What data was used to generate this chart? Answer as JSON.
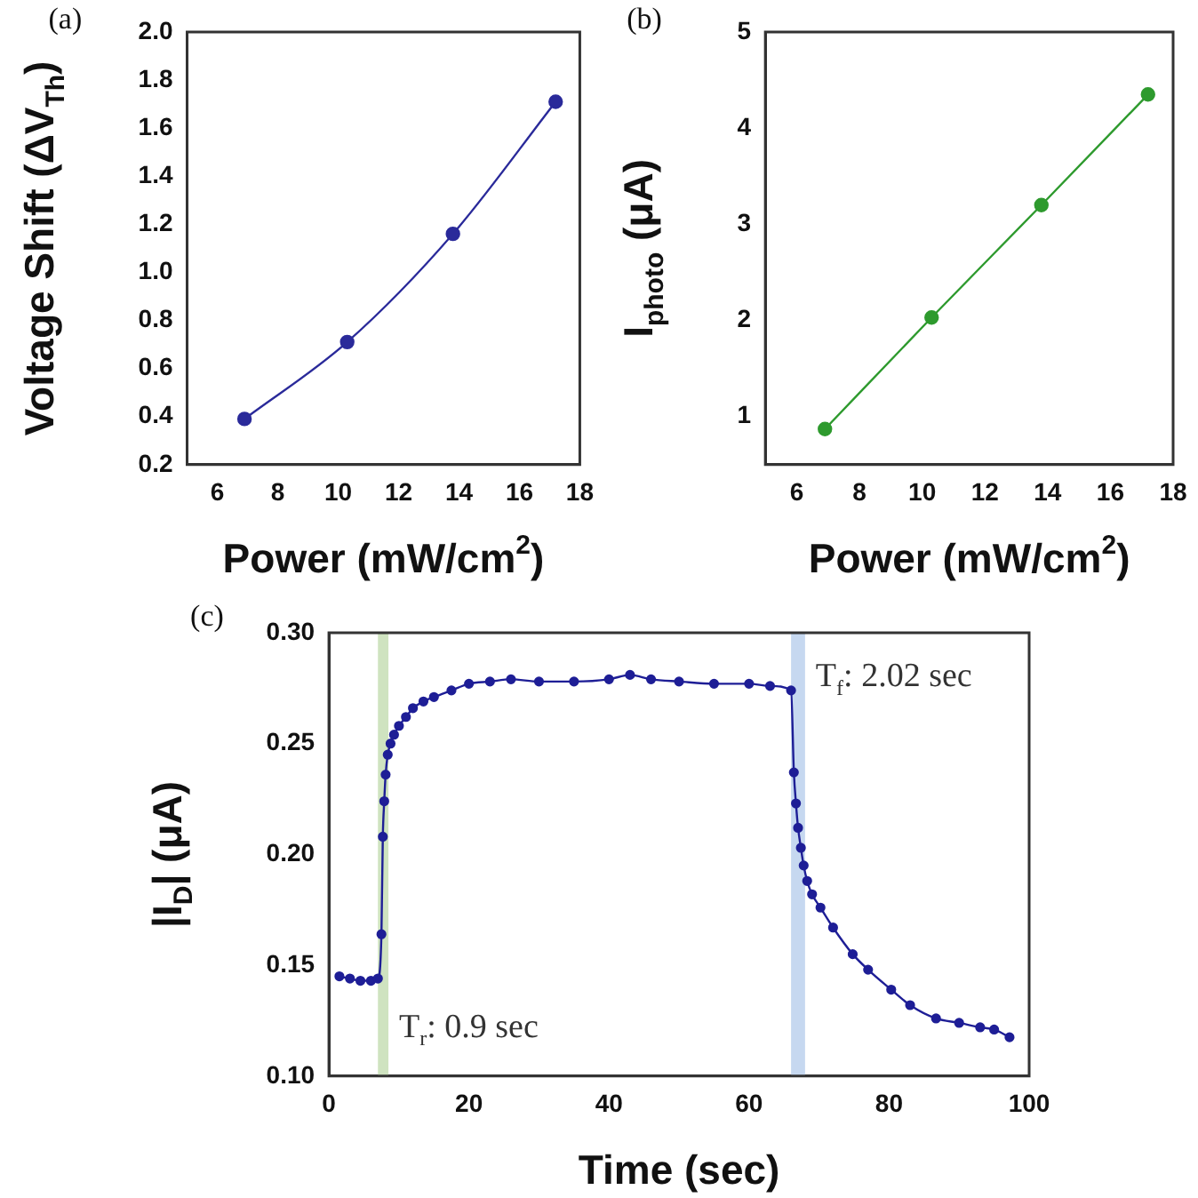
{
  "chart_data": [
    {
      "type": "line",
      "title": "(a)",
      "xlabel": "Power (mW/cm$^{2}$)",
      "ylabel": "Voltage Shift (ΔV$_{Th}$)",
      "marker": "circle",
      "grid": false,
      "legend": false,
      "x": [
        6.9,
        10.3,
        13.8,
        17.2
      ],
      "series": [
        {
          "color": "#2a2a9a",
          "values": [
            0.39,
            0.71,
            1.16,
            1.71
          ]
        }
      ],
      "xlim": [
        5,
        18
      ],
      "xticks": [
        6,
        8,
        10,
        12,
        14,
        16,
        18
      ],
      "ylim": [
        0.2,
        2.0
      ],
      "yticks": [
        0.2,
        0.4,
        0.6,
        0.8,
        {
          "value": 1,
          "label": "1.0"
        },
        1.2,
        1.4,
        1.6,
        1.8,
        {
          "value": 2,
          "label": "2.0"
        }
      ]
    },
    {
      "type": "line",
      "title": "(b)",
      "xlabel": "Power (mW/cm$^{2}$)",
      "ylabel": "I$_{photo}$ (μA)",
      "marker": "circle",
      "grid": false,
      "legend": false,
      "x": [
        6.9,
        10.3,
        13.8,
        17.2
      ],
      "series": [
        {
          "color": "#2e9a2e",
          "values": [
            0.87,
            2.03,
            3.2,
            4.35
          ]
        }
      ],
      "xlim": [
        5,
        18
      ],
      "xticks": [
        6,
        8,
        10,
        12,
        14,
        16,
        18
      ],
      "ylim": [
        0.5,
        5
      ],
      "yticks": [
        1,
        2,
        3,
        4,
        5
      ]
    },
    {
      "type": "line",
      "title": "(c)",
      "xlabel": "Time (sec)",
      "ylabel": "|I$_{D}$| (μA)",
      "marker": "circle",
      "grid": false,
      "legend": false,
      "x": [
        1.5,
        3,
        4.5,
        6,
        7,
        7.5,
        7.7,
        7.9,
        8.1,
        8.4,
        8.8,
        9.3,
        10,
        11,
        12,
        13.5,
        15,
        17.5,
        20,
        23,
        26,
        30,
        35,
        40,
        43,
        46,
        50,
        55,
        60,
        63,
        66,
        66.4,
        66.7,
        67,
        67.4,
        67.8,
        68.3,
        69,
        70.2,
        72,
        74.8,
        77,
        80.3,
        83,
        86.7,
        90,
        93,
        95,
        97.2
      ],
      "series": [
        {
          "color": "#1e1e96",
          "values": [
            0.145,
            0.144,
            0.143,
            0.143,
            0.144,
            0.164,
            0.208,
            0.224,
            0.236,
            0.245,
            0.25,
            0.254,
            0.258,
            0.262,
            0.266,
            0.269,
            0.271,
            0.274,
            0.277,
            0.278,
            0.279,
            0.278,
            0.278,
            0.279,
            0.281,
            0.279,
            0.278,
            0.277,
            0.277,
            0.276,
            0.274,
            0.237,
            0.223,
            0.212,
            0.203,
            0.195,
            0.188,
            0.182,
            0.176,
            0.167,
            0.155,
            0.148,
            0.139,
            0.132,
            0.126,
            0.124,
            0.122,
            0.121,
            0.1175
          ]
        }
      ],
      "xlim": [
        0,
        100
      ],
      "xticks": [
        0,
        20,
        40,
        60,
        80,
        100
      ],
      "ylim": [
        0.1,
        0.3
      ],
      "yticks": [
        {
          "value": 0.1,
          "label": "0.10"
        },
        0.15,
        {
          "value": 0.2,
          "label": "0.20"
        },
        0.25,
        {
          "value": 0.3,
          "label": "0.30"
        }
      ],
      "bands": [
        {
          "axis": "x",
          "from": 7,
          "to": 8.5,
          "label": "T$_{r}$: 0.9 sec",
          "color": "#cfe3c0"
        },
        {
          "axis": "x",
          "from": 66,
          "to": 68,
          "label": "T$_{f}$: 2.02 sec",
          "color": "#c6d8f0"
        }
      ]
    }
  ]
}
